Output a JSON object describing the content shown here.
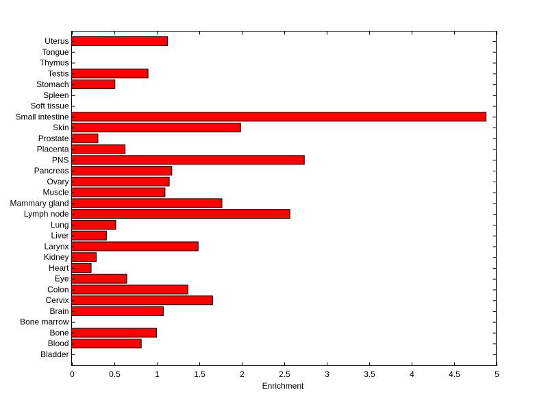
{
  "chart_data": {
    "type": "bar",
    "orientation": "horizontal",
    "title": "",
    "xlabel": "Enrichment",
    "ylabel": "",
    "xlim": [
      0,
      5
    ],
    "xticks": [
      "0",
      "0.5",
      "1",
      "1.5",
      "2",
      "2.5",
      "3",
      "3.5",
      "4",
      "4.5",
      "5"
    ],
    "xtick_values": [
      0,
      0.5,
      1,
      1.5,
      2,
      2.5,
      3,
      3.5,
      4,
      4.5,
      5
    ],
    "grid": false,
    "bar_color": "#ff0000",
    "categories": [
      "Bladder",
      "Blood",
      "Bone",
      "Bone marrow",
      "Brain",
      "Cervix",
      "Colon",
      "Eye",
      "Heart",
      "Kidney",
      "Larynx",
      "Liver",
      "Lung",
      "Lymph node",
      "Mammary gland",
      "Muscle",
      "Ovary",
      "Pancreas",
      "PNS",
      "Placenta",
      "Prostate",
      "Skin",
      "Small intestine",
      "Soft tissue",
      "Spleen",
      "Stomach",
      "Testis",
      "Thymus",
      "Tongue",
      "Uterus"
    ],
    "values": [
      0,
      0.82,
      1.0,
      0,
      1.08,
      1.66,
      1.37,
      0.65,
      0.23,
      0.29,
      1.49,
      0.41,
      0.52,
      2.57,
      1.77,
      1.1,
      1.15,
      1.18,
      2.74,
      0.63,
      0.31,
      1.99,
      4.88,
      0,
      0,
      0.51,
      0.9,
      0,
      0,
      1.13
    ]
  }
}
